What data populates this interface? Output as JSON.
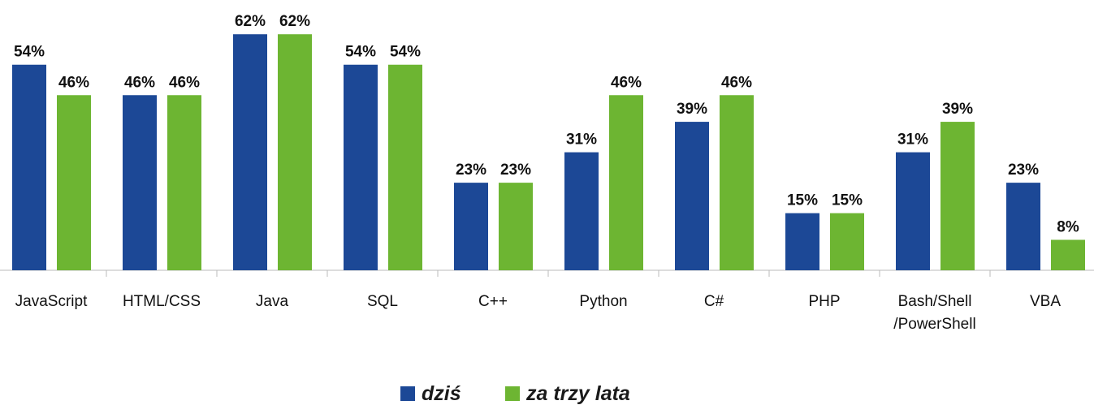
{
  "chart_data": {
    "type": "bar",
    "categories": [
      "JavaScript",
      "HTML/CSS",
      "Java",
      "SQL",
      "C++",
      "Python",
      "C#",
      "PHP",
      "Bash/Shell /PowerShell",
      "VBA"
    ],
    "series": [
      {
        "name": "dziś",
        "color": "#1c4896",
        "values": [
          54,
          46,
          62,
          54,
          23,
          31,
          39,
          15,
          31,
          23
        ],
        "value_labels": [
          "54%",
          "46%",
          "62%",
          "54%",
          "23%",
          "31%",
          "39%",
          "15%",
          "31%",
          "23%"
        ]
      },
      {
        "name": "za trzy lata",
        "color": "#6db532",
        "values": [
          46,
          46,
          62,
          54,
          23,
          46,
          46,
          15,
          39,
          8
        ],
        "value_labels": [
          "46%",
          "46%",
          "62%",
          "54%",
          "23%",
          "46%",
          "46%",
          "15%",
          "39%",
          "8%"
        ]
      }
    ],
    "ylim": [
      0,
      71
    ]
  }
}
